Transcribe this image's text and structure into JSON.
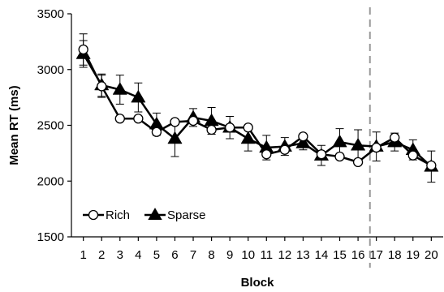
{
  "chart_data": {
    "type": "line",
    "title": "",
    "xlabel": "Block",
    "ylabel": "Mean RT (ms)",
    "x": [
      1,
      2,
      3,
      4,
      5,
      6,
      7,
      8,
      9,
      10,
      11,
      12,
      13,
      14,
      15,
      16,
      17,
      18,
      19,
      20
    ],
    "ylim": [
      1500,
      3500
    ],
    "yticks": [
      1500,
      2000,
      2500,
      3000,
      3500
    ],
    "grid": false,
    "legend_position": "bottom-left",
    "vertical_reference_line": {
      "x": 16.65,
      "style": "dashed",
      "color": "#999999"
    },
    "series": [
      {
        "name": "Rich",
        "marker": "open-circle",
        "color": "#000000",
        "values": [
          3180,
          2850,
          2560,
          2560,
          2440,
          2530,
          2540,
          2460,
          2480,
          2480,
          2240,
          2280,
          2400,
          2240,
          2220,
          2170,
          2300,
          2390,
          2230,
          2140
        ],
        "errors": [
          140,
          100,
          0,
          0,
          0,
          0,
          0,
          0,
          0,
          0,
          0,
          0,
          0,
          0,
          0,
          0,
          0,
          0,
          0,
          0
        ]
      },
      {
        "name": "Sparse",
        "marker": "filled-triangle",
        "color": "#000000",
        "values": [
          3140,
          2860,
          2820,
          2750,
          2510,
          2380,
          2570,
          2540,
          2480,
          2380,
          2300,
          2310,
          2340,
          2230,
          2350,
          2320,
          2310,
          2350,
          2280,
          2130
        ],
        "errors": [
          120,
          100,
          130,
          130,
          100,
          160,
          80,
          120,
          100,
          110,
          110,
          80,
          60,
          90,
          120,
          140,
          130,
          80,
          90,
          140
        ]
      }
    ]
  }
}
